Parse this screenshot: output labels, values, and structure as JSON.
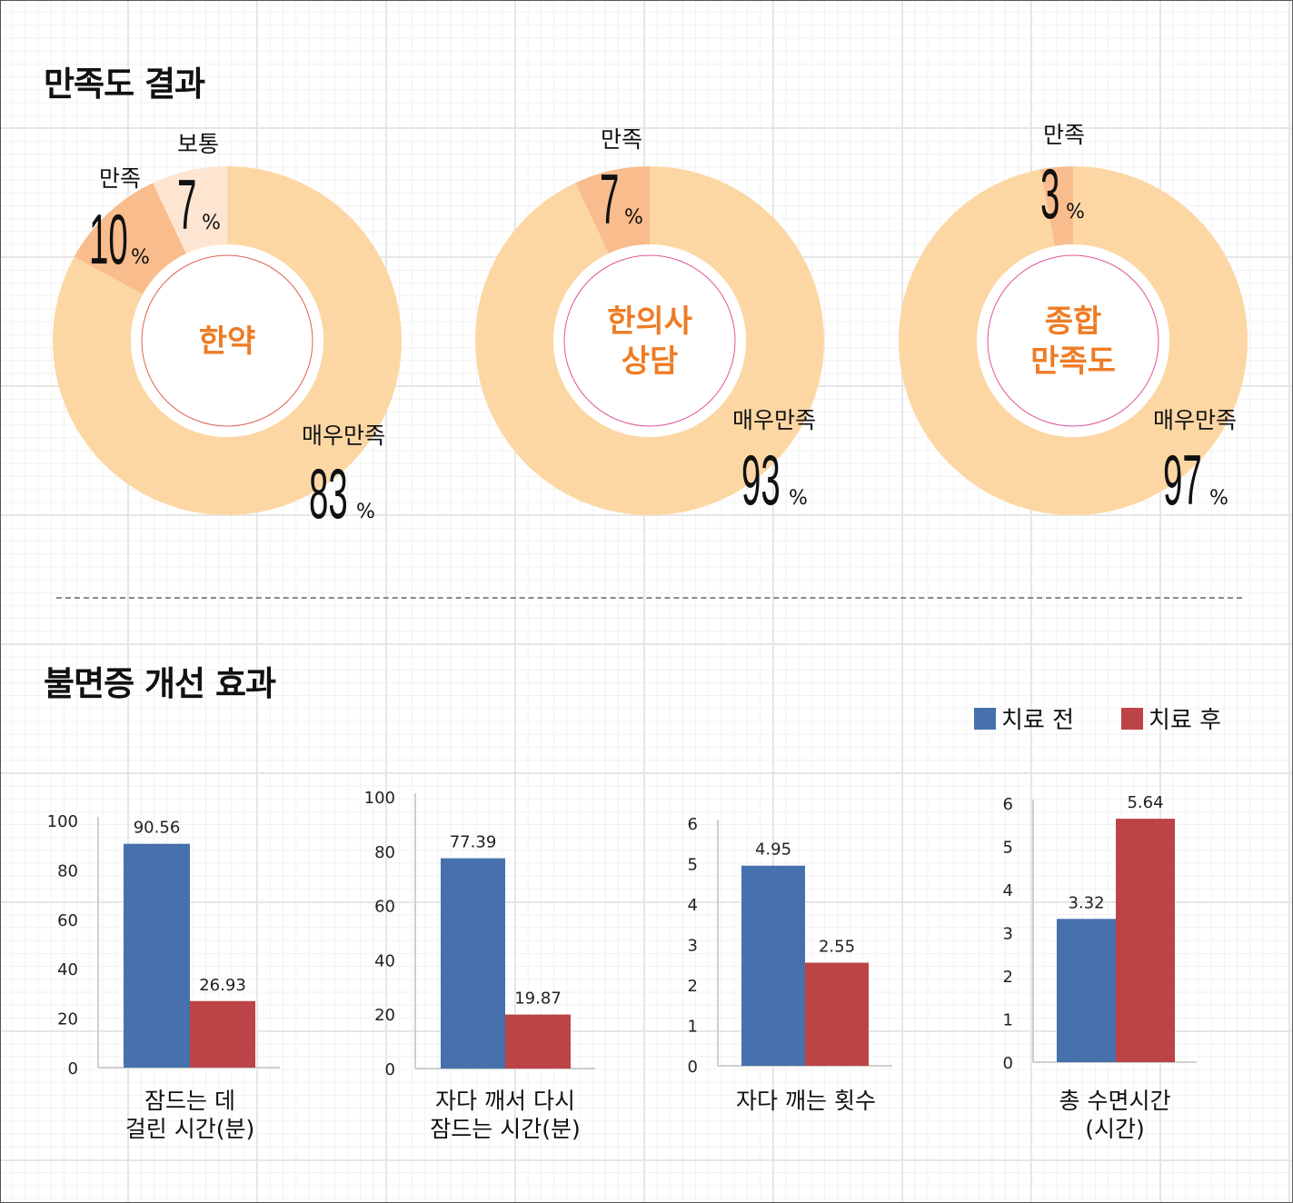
{
  "sections": {
    "satisfaction_title": "만족도 결과",
    "insomnia_title": "불면증 개선 효과"
  },
  "legend": {
    "before": "치료 전",
    "after": "치료 후"
  },
  "colors": {
    "very_satisfied": "#fcd7a4",
    "satisfied": "#f9bc8c",
    "normal": "#fde5d2",
    "accent_text": "#ee7c25",
    "before_bar": "#4671ad",
    "after_bar": "#bc4446",
    "inner_ring_red": "#e06055",
    "inner_ring_pink": "#e0559a"
  },
  "chart_data": [
    {
      "type": "pie",
      "title": "한약",
      "slices": [
        {
          "label": "매우만족",
          "value": 83,
          "unit": "%"
        },
        {
          "label": "만족",
          "value": 10,
          "unit": "%"
        },
        {
          "label": "보통",
          "value": 7,
          "unit": "%"
        }
      ]
    },
    {
      "type": "pie",
      "title": "한의사 상담",
      "title_lines": [
        "한의사",
        "상담"
      ],
      "slices": [
        {
          "label": "매우만족",
          "value": 93,
          "unit": "%"
        },
        {
          "label": "만족",
          "value": 7,
          "unit": "%"
        }
      ]
    },
    {
      "type": "pie",
      "title": "종합 만족도",
      "title_lines": [
        "종합",
        "만족도"
      ],
      "slices": [
        {
          "label": "매우만족",
          "value": 97,
          "unit": "%"
        },
        {
          "label": "만족",
          "value": 3,
          "unit": "%"
        }
      ]
    },
    {
      "type": "bar",
      "caption_lines": [
        "잠드는 데",
        "걸린 시간(분)"
      ],
      "series": [
        {
          "name": "치료 전",
          "values": [
            90.56
          ]
        },
        {
          "name": "치료 후",
          "values": [
            26.93
          ]
        }
      ],
      "data_labels": [
        "90.56",
        "26.93"
      ],
      "ylim": [
        0,
        100
      ],
      "yticks": [
        "0",
        "20",
        "40",
        "60",
        "80",
        "100"
      ]
    },
    {
      "type": "bar",
      "caption_lines": [
        "자다 깨서 다시",
        "잠드는 시간(분)"
      ],
      "series": [
        {
          "name": "치료 전",
          "values": [
            77.39
          ]
        },
        {
          "name": "치료 후",
          "values": [
            19.87
          ]
        }
      ],
      "data_labels": [
        "77.39",
        "19.87"
      ],
      "ylim": [
        0,
        100
      ],
      "yticks": [
        "0",
        "20",
        "40",
        "60",
        "80",
        "100"
      ]
    },
    {
      "type": "bar",
      "caption_lines": [
        "자다 깨는 횟수"
      ],
      "series": [
        {
          "name": "치료 전",
          "values": [
            4.95
          ]
        },
        {
          "name": "치료 후",
          "values": [
            2.55
          ]
        }
      ],
      "data_labels": [
        "4.95",
        "2.55"
      ],
      "ylim": [
        0,
        6
      ],
      "yticks": [
        "0",
        "1",
        "2",
        "3",
        "4",
        "5",
        "6"
      ]
    },
    {
      "type": "bar",
      "caption_lines": [
        "총 수면시간",
        "(시간)"
      ],
      "series": [
        {
          "name": "치료 전",
          "values": [
            3.32
          ]
        },
        {
          "name": "치료 후",
          "values": [
            5.64
          ]
        }
      ],
      "data_labels": [
        "3.32",
        "5.64"
      ],
      "ylim": [
        0,
        6
      ],
      "yticks": [
        "0",
        "1",
        "2",
        "3",
        "4",
        "5",
        "6"
      ]
    }
  ]
}
